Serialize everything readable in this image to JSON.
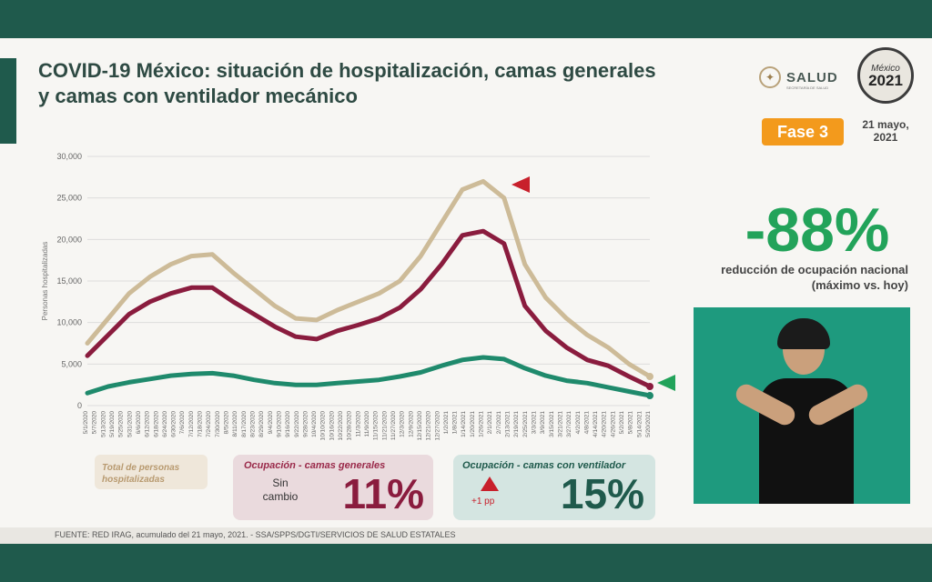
{
  "slide": {
    "title": "COVID-19 México: situación de hospitalización, camas generales y camas con ventilador mecánico",
    "logo_text": "SALUD",
    "logo_subtext": "SECRETARÍA DE SALUD",
    "badge_text": "México",
    "badge_year": "2021",
    "phase_label": "Fase 3",
    "date_line1": "21 mayo,",
    "date_line2": "2021",
    "reduction_value": "-88%",
    "reduction_label": "reducción de ocupación nacional (máximo vs. hoy)",
    "footer": "FUENTE: RED IRAG, acumulado del 21 mayo, 2021. -  SSA/SPPS/DGTI/SERVICIOS DE SALUD ESTATALES",
    "colors": {
      "total": "#cdbb98",
      "general": "#8a1c3e",
      "ventilator": "#1f8a6c",
      "accent_green": "#22a35a",
      "phase": "#f39a1c",
      "red_marker": "#c8202b"
    }
  },
  "legend": {
    "total_label": "Total de personas hospitalizadas",
    "general_title": "Ocupación - camas generales",
    "general_change": "Sin cambio",
    "general_value": "11%",
    "vent_title": "Ocupación - camas con ventilador",
    "vent_change": "+1 pp",
    "vent_value": "15%"
  },
  "chart_data": {
    "type": "line",
    "title": "",
    "xlabel": "",
    "ylabel": "Personas hospitalizadas",
    "ylim": [
      0,
      30000
    ],
    "yticks": [
      "0",
      "5,000",
      "10,000",
      "15,000",
      "20,000",
      "25,000",
      "30,000"
    ],
    "x": [
      "5/1/2020",
      "5/16/2020",
      "5/31/2020",
      "6/15/2020",
      "6/30/2020",
      "7/15/2020",
      "7/24/2020",
      "8/8/2020",
      "8/23/2020",
      "9/7/2020",
      "9/22/2020",
      "10/7/2020",
      "10/22/2020",
      "11/6/2020",
      "11/21/2020",
      "12/6/2020",
      "12/21/2020",
      "1/5/2021",
      "1/20/2021",
      "1/25/2021",
      "2/4/2021",
      "2/19/2021",
      "3/6/2021",
      "3/21/2021",
      "4/5/2021",
      "4/20/2021",
      "5/5/2021",
      "5/20/2021"
    ],
    "xticks": [
      "5/1/2020",
      "5/7/2020",
      "5/13/2020",
      "5/19/2020",
      "5/25/2020",
      "5/31/2020",
      "6/6/2020",
      "6/12/2020",
      "6/18/2020",
      "6/24/2020",
      "6/30/2020",
      "7/6/2020",
      "7/12/2020",
      "7/18/2020",
      "7/24/2020",
      "7/30/2020",
      "8/5/2020",
      "8/11/2020",
      "8/17/2020",
      "8/23/2020",
      "8/29/2020",
      "9/4/2020",
      "9/10/2020",
      "9/16/2020",
      "9/22/2020",
      "9/28/2020",
      "10/4/2020",
      "10/10/2020",
      "10/16/2020",
      "10/22/2020",
      "10/28/2020",
      "11/3/2020",
      "11/9/2020",
      "11/15/2020",
      "11/21/2020",
      "11/27/2020",
      "12/3/2020",
      "12/9/2020",
      "12/15/2020",
      "12/21/2020",
      "12/27/2020",
      "1/2/2021",
      "1/8/2021",
      "1/14/2021",
      "1/20/2021",
      "1/26/2021",
      "2/1/2021",
      "2/7/2021",
      "2/13/2021",
      "2/19/2021",
      "2/25/2021",
      "3/3/2021",
      "3/9/2021",
      "3/15/2021",
      "3/21/2021",
      "3/27/2021",
      "4/2/2021",
      "4/8/2021",
      "4/14/2021",
      "4/20/2021",
      "4/26/2021",
      "5/2/2021",
      "5/8/2021",
      "5/14/2021",
      "5/20/2021"
    ],
    "series": [
      {
        "name": "Total de personas hospitalizadas",
        "values": [
          7500,
          10500,
          13500,
          15500,
          17000,
          18000,
          18200,
          16000,
          14000,
          12000,
          10500,
          10300,
          11500,
          12500,
          13500,
          15000,
          18000,
          22000,
          26000,
          27000,
          25000,
          17000,
          13000,
          10500,
          8500,
          7000,
          5000,
          3500
        ]
      },
      {
        "name": "Ocupación - camas generales",
        "values": [
          6000,
          8500,
          11000,
          12500,
          13500,
          14200,
          14200,
          12500,
          11000,
          9500,
          8300,
          8000,
          9000,
          9700,
          10500,
          11800,
          14000,
          17000,
          20500,
          21000,
          19500,
          12000,
          9000,
          7000,
          5500,
          4800,
          3500,
          2300
        ]
      },
      {
        "name": "Ocupación - camas con ventilador",
        "values": [
          1500,
          2300,
          2800,
          3200,
          3600,
          3800,
          3900,
          3600,
          3100,
          2700,
          2500,
          2500,
          2700,
          2900,
          3100,
          3500,
          4000,
          4800,
          5500,
          5800,
          5600,
          4500,
          3600,
          3000,
          2700,
          2200,
          1700,
          1200
        ]
      }
    ]
  }
}
